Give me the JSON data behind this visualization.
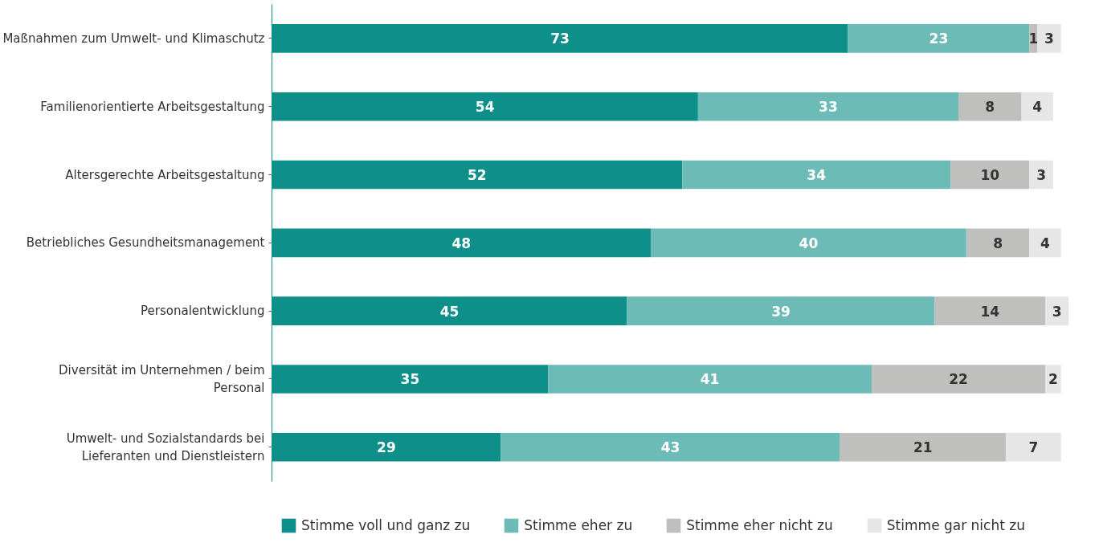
{
  "chart_data": {
    "type": "bar",
    "orientation": "horizontal",
    "stacked": true,
    "data_labels": true,
    "legend": "bottom",
    "grid": false,
    "xlim": [
      0,
      101
    ],
    "tick_labels": "y",
    "categories": [
      "Maßnahmen zum Umwelt- und Klimaschutz",
      "Familienorientierte Arbeitsgestaltung",
      "Altersgerechte Arbeitsgestaltung",
      "Betriebliches Gesundheitsmanagement",
      "Personalentwicklung",
      "Diversität im Unternehmen / beim Personal",
      "Umwelt- und Sozialstandards bei Lieferanten und Dienstleistern"
    ],
    "series": [
      {
        "name": "Stimme voll und ganz zu",
        "color": "#0e8f8a",
        "values": [
          73,
          54,
          52,
          48,
          45,
          35,
          29
        ]
      },
      {
        "name": "Stimme eher zu",
        "color": "#6dbbb7",
        "values": [
          23,
          33,
          34,
          40,
          39,
          41,
          43
        ]
      },
      {
        "name": "Stimme eher nicht zu",
        "color": "#bfbfbe",
        "values": [
          1,
          8,
          10,
          8,
          14,
          22,
          21
        ]
      },
      {
        "name": "Stimme gar nicht zu",
        "color": "#e6e6e6",
        "values": [
          3,
          4,
          3,
          4,
          3,
          2,
          7
        ]
      }
    ]
  }
}
